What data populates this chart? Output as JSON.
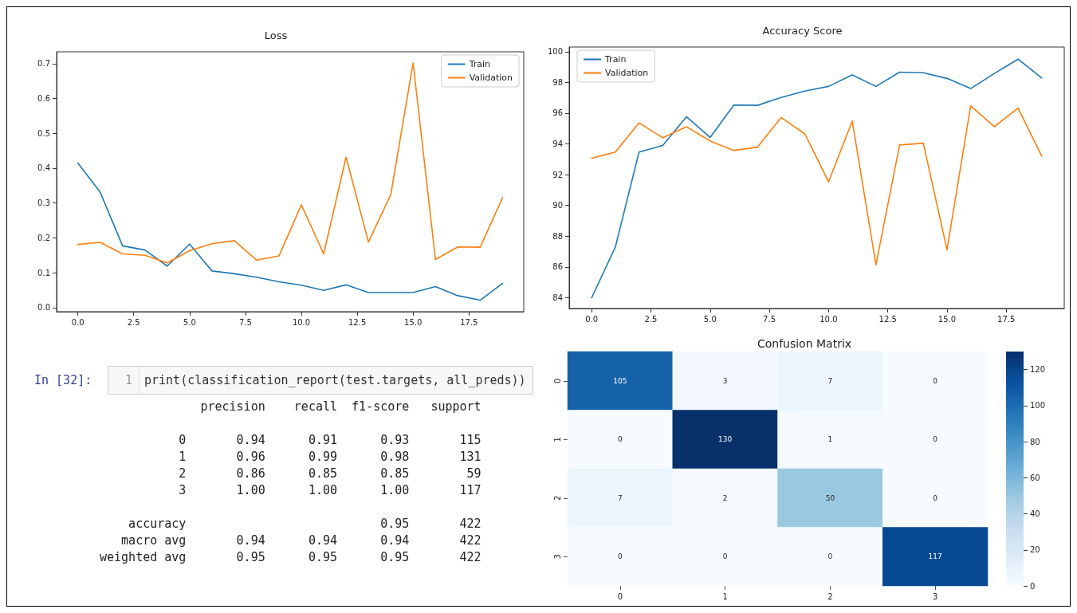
{
  "chart_data": [
    {
      "type": "line",
      "title": "Loss",
      "x": [
        0,
        1,
        2,
        3,
        4,
        5,
        6,
        7,
        8,
        9,
        10,
        11,
        12,
        13,
        14,
        15,
        16,
        17,
        18,
        19
      ],
      "series": [
        {
          "name": "Train",
          "color": "#1f77b4",
          "values": [
            0.415,
            0.331,
            0.177,
            0.165,
            0.119,
            0.182,
            0.105,
            0.097,
            0.087,
            0.074,
            0.064,
            0.049,
            0.065,
            0.043,
            0.043,
            0.043,
            0.06,
            0.034,
            0.021,
            0.069
          ]
        },
        {
          "name": "Validation",
          "color": "#ff7f0e",
          "values": [
            0.181,
            0.187,
            0.154,
            0.15,
            0.128,
            0.163,
            0.183,
            0.192,
            0.136,
            0.148,
            0.295,
            0.154,
            0.432,
            0.188,
            0.324,
            0.702,
            0.138,
            0.174,
            0.173,
            0.315
          ]
        }
      ],
      "xlim": [
        -0.95,
        19.95
      ],
      "ylim": [
        -0.012,
        0.734
      ],
      "xticks": [
        {
          "value": 0,
          "label": "0.0"
        },
        2.5,
        {
          "value": 5,
          "label": "5.0"
        },
        7.5,
        {
          "value": 10,
          "label": "10.0"
        },
        12.5,
        {
          "value": 15,
          "label": "15.0"
        },
        17.5
      ],
      "yticks": [
        {
          "value": 0,
          "label": "0.0"
        },
        0.1,
        0.2,
        0.3,
        0.4,
        0.5,
        0.6,
        0.7
      ],
      "grid": false,
      "legend": "top right",
      "marker": "none",
      "line_style": "solid"
    },
    {
      "type": "line",
      "title": "Accuracy Score",
      "x": [
        0,
        1,
        2,
        3,
        4,
        5,
        6,
        7,
        8,
        9,
        10,
        11,
        12,
        13,
        14,
        15,
        16,
        17,
        18,
        19
      ],
      "series": [
        {
          "name": "Train",
          "color": "#1f77b4",
          "values": [
            84.0,
            87.3,
            93.47,
            93.9,
            95.77,
            94.42,
            96.53,
            96.51,
            97.02,
            97.44,
            97.74,
            98.49,
            97.74,
            98.67,
            98.63,
            98.26,
            97.6,
            98.58,
            99.51,
            98.28
          ]
        },
        {
          "name": "Validation",
          "color": "#ff7f0e",
          "values": [
            93.07,
            93.47,
            95.37,
            94.4,
            95.12,
            94.19,
            93.58,
            93.79,
            95.72,
            94.65,
            91.53,
            95.49,
            86.14,
            93.93,
            94.05,
            87.12,
            96.47,
            95.12,
            96.33,
            93.21
          ]
        }
      ],
      "xlim": [
        -0.95,
        19.95
      ],
      "ylim": [
        83.3,
        100.3
      ],
      "xticks": [
        {
          "value": 0,
          "label": "0.0"
        },
        2.5,
        {
          "value": 5,
          "label": "5.0"
        },
        7.5,
        {
          "value": 10,
          "label": "10.0"
        },
        12.5,
        {
          "value": 15,
          "label": "15.0"
        },
        17.5
      ],
      "yticks": [
        84,
        86,
        88,
        90,
        92,
        94,
        96,
        98,
        100
      ],
      "grid": false,
      "legend": "top left",
      "marker": "none",
      "line_style": "solid"
    },
    {
      "type": "other",
      "annotations": [
        "In [32]:",
        "1",
        "print(classification_report(test.targets, all_preds))",
        "              precision    recall  f1-score   support",
        "           0       0.94      0.91      0.93       115",
        "           1       0.96      0.99      0.98       131",
        "           2       0.86      0.85      0.85        59",
        "           3       1.00      1.00      1.00       117",
        "    accuracy                           0.95       422",
        "   macro avg       0.94      0.94      0.94       422",
        "weighted avg       0.95      0.95      0.95       422"
      ]
    },
    {
      "type": "heatmap",
      "title": "Confusion Matrix",
      "categories": [
        "0",
        "1",
        "2",
        "3"
      ],
      "y_categories": [
        "0",
        "1",
        "2",
        "3"
      ],
      "cells": [
        [
          105,
          3,
          7,
          0
        ],
        [
          0,
          130,
          1,
          0
        ],
        [
          7,
          2,
          50,
          0
        ],
        [
          0,
          0,
          0,
          117
        ]
      ],
      "clim": [
        0,
        130
      ],
      "cticks": [
        0,
        20,
        40,
        60,
        80,
        100,
        120
      ],
      "data_labels": true
    }
  ]
}
